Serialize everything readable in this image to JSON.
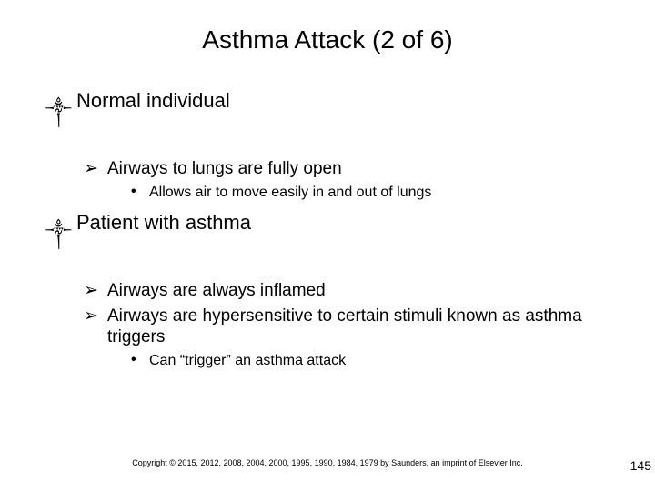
{
  "title": "Asthma Attack (2 of 6)",
  "items": [
    {
      "label": "Normal individual",
      "sub": [
        {
          "label": "Airways to lungs are fully open",
          "detail": [
            "Allows air to move easily in and out of lungs"
          ]
        }
      ]
    },
    {
      "label": "Patient with asthma",
      "sub": [
        {
          "label": "Airways are always inflamed",
          "detail": []
        },
        {
          "label": "Airways are hypersensitive to certain stimuli known as asthma triggers",
          "detail": [
            "Can “trigger” an asthma attack"
          ]
        }
      ]
    }
  ],
  "copyright": "Copyright © 2015, 2012, 2008, 2004, 2000, 1995, 1990, 1984, 1979 by Saunders, an imprint of Elsevier Inc.",
  "pageNumber": "145",
  "bullets": {
    "l1": "༒",
    "l2": "➢",
    "l3": "•"
  },
  "colors": {
    "text": "#000000",
    "background": "#ffffff"
  }
}
